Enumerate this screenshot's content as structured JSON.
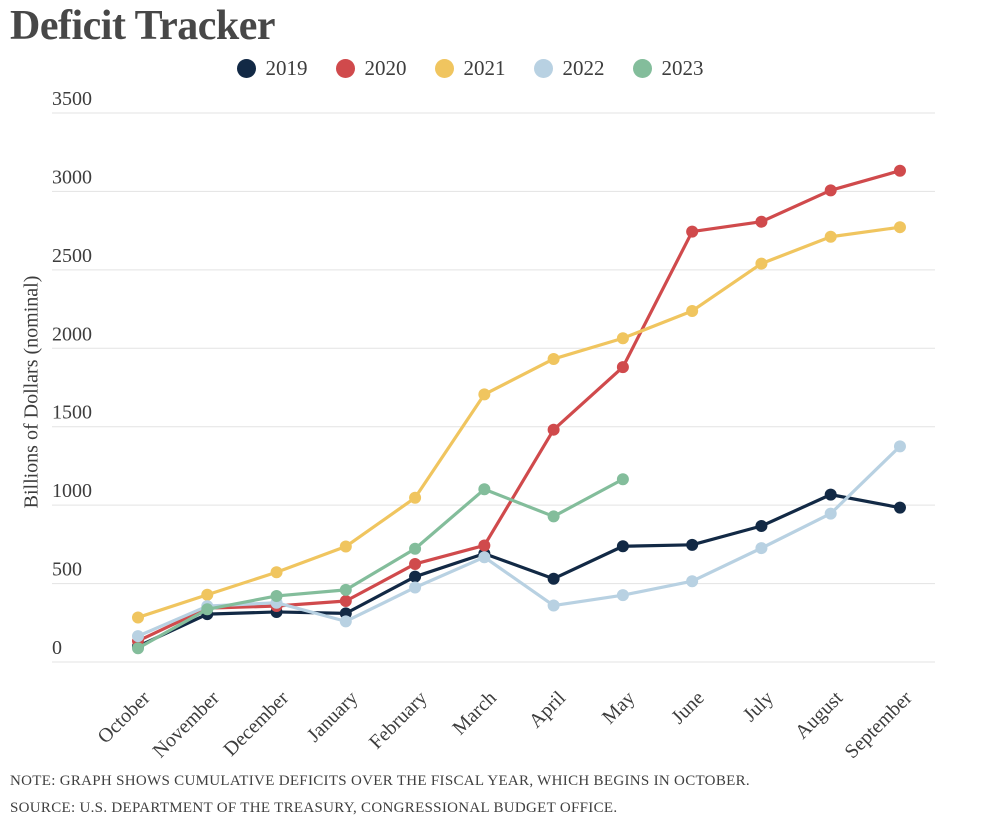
{
  "title": "Deficit Tracker",
  "ylabel": "Billions of Dollars (nominal)",
  "legend": {
    "items": [
      {
        "label": "2019",
        "color": "#122945"
      },
      {
        "label": "2020",
        "color": "#d04a4c"
      },
      {
        "label": "2021",
        "color": "#f0c55f"
      },
      {
        "label": "2022",
        "color": "#b8d1e2"
      },
      {
        "label": "2023",
        "color": "#83bd9b"
      }
    ]
  },
  "notes": {
    "note": "NOTE: GRAPH SHOWS CUMULATIVE DEFICITS OVER THE FISCAL YEAR, WHICH BEGINS IN OCTOBER.",
    "source": "SOURCE: U.S. DEPARTMENT OF THE TREASURY, CONGRESSIONAL BUDGET OFFICE."
  },
  "chart_data": {
    "type": "line",
    "title": "Deficit Tracker",
    "xlabel": "",
    "ylabel": "Billions of Dollars (nominal)",
    "ylim": [
      0,
      3500
    ],
    "yticks": [
      0,
      500,
      1000,
      1500,
      2000,
      2500,
      3000,
      3500
    ],
    "grid": true,
    "legend_position": "top",
    "categories": [
      "October",
      "November",
      "December",
      "January",
      "February",
      "March",
      "April",
      "May",
      "June",
      "July",
      "August",
      "September"
    ],
    "series": [
      {
        "name": "2019",
        "color": "#122945",
        "values": [
          100,
          305,
          319,
          310,
          544,
          691,
          531,
          738,
          747,
          867,
          1067,
          984
        ]
      },
      {
        "name": "2020",
        "color": "#d04a4c",
        "values": [
          134,
          343,
          357,
          389,
          625,
          743,
          1481,
          1880,
          2744,
          2807,
          3007,
          3132
        ]
      },
      {
        "name": "2021",
        "color": "#f0c55f",
        "values": [
          284,
          429,
          572,
          736,
          1047,
          1706,
          1932,
          2064,
          2238,
          2540,
          2711,
          2772
        ]
      },
      {
        "name": "2022",
        "color": "#b8d1e2",
        "values": [
          165,
          356,
          378,
          259,
          475,
          668,
          360,
          426,
          515,
          726,
          946,
          1375
        ]
      },
      {
        "name": "2023",
        "color": "#83bd9b",
        "values": [
          88,
          336,
          421,
          460,
          722,
          1101,
          928,
          1165
        ]
      }
    ]
  },
  "style": {
    "grid_color": "#e3e3e3",
    "tick_label_color": "#3d3d3d",
    "marker_radius": 6,
    "line_width": 3.2
  }
}
